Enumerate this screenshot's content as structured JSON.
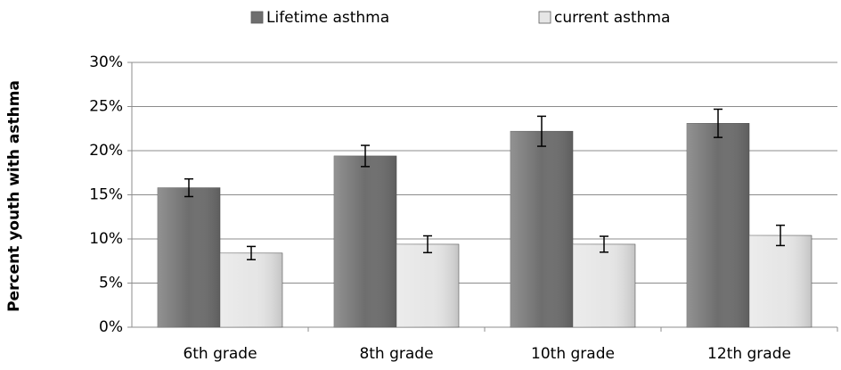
{
  "chart_data": {
    "type": "bar",
    "y_label": "Percent youth with asthma",
    "categories": [
      "6th grade",
      "8th grade",
      "10th grade",
      "12th grade"
    ],
    "series": [
      {
        "name": "Lifetime asthma",
        "color": "#6e6e6e",
        "values": [
          15.8,
          19.4,
          22.2,
          23.1
        ],
        "errors": [
          1.0,
          1.2,
          1.7,
          1.6
        ]
      },
      {
        "name": "current asthma",
        "color": "#e6e6e6",
        "values": [
          8.4,
          9.4,
          9.4,
          10.4
        ],
        "errors": [
          0.75,
          0.95,
          0.9,
          1.15
        ]
      }
    ],
    "ylim": [
      0,
      30
    ],
    "yticks": [
      {
        "value": 0,
        "label": "0%"
      },
      {
        "value": 5,
        "label": "5%"
      },
      {
        "value": 10,
        "label": "10%"
      },
      {
        "value": 15,
        "label": "15%"
      },
      {
        "value": 20,
        "label": "20%"
      },
      {
        "value": 25,
        "label": "25%"
      },
      {
        "value": 30,
        "label": "30%"
      }
    ],
    "grid": true,
    "legend": "top"
  }
}
